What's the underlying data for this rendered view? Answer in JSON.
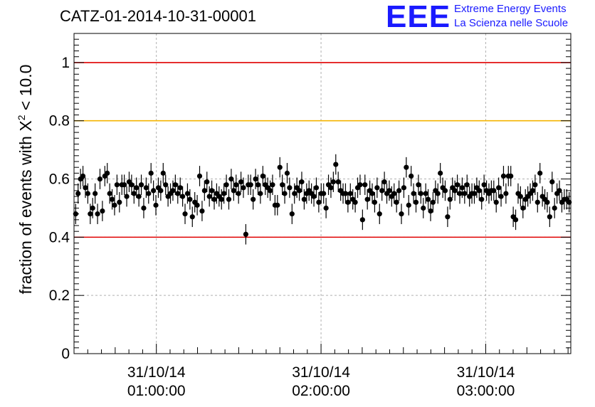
{
  "title": "CATZ-01-2014-10-31-00001",
  "logo": {
    "mark": "EEE",
    "line1": "Extreme Energy Events",
    "line2": "La Scienza nelle Scuole"
  },
  "colors": {
    "red_line": "#e00000",
    "yellow_line": "#f4b400",
    "points": "#000000",
    "logo": "#1a1aff"
  },
  "chart_data": {
    "type": "scatter",
    "title": "CATZ-01-2014-10-31-00001",
    "ylabel_prefix": "fraction of events with ",
    "ylabel_symbol": "X",
    "ylabel_sup": "2",
    "ylabel_suffix": " < 10.0",
    "xlabel": "",
    "ylim": [
      0,
      1.1
    ],
    "yticks": [
      {
        "value": 0,
        "label": "0"
      },
      {
        "value": 0.2,
        "label": "0.2"
      },
      {
        "value": 0.4,
        "label": "0.4"
      },
      {
        "value": 0.6,
        "label": "0.6"
      },
      {
        "value": 0.8,
        "label": "0.8"
      },
      {
        "value": 1.0,
        "label": "1"
      }
    ],
    "xlim_minutes": [
      30,
      211
    ],
    "xticks": [
      {
        "minutes": 60,
        "date": "31/10/14",
        "time": "01:00:00"
      },
      {
        "minutes": 120,
        "date": "31/10/14",
        "time": "02:00:00"
      },
      {
        "minutes": 180,
        "date": "31/10/14",
        "time": "03:00:00"
      }
    ],
    "grid": true,
    "reference_lines": [
      {
        "y": 1.0,
        "color": "#e00000"
      },
      {
        "y": 0.8,
        "color": "#f4b400"
      },
      {
        "y": 0.4,
        "color": "#e00000"
      }
    ],
    "error_bar": 0.035,
    "points": [
      0.48,
      0.55,
      0.6,
      0.61,
      0.57,
      0.55,
      0.48,
      0.5,
      0.55,
      0.48,
      0.6,
      0.49,
      0.61,
      0.62,
      0.55,
      0.53,
      0.51,
      0.58,
      0.52,
      0.58,
      0.58,
      0.54,
      0.59,
      0.58,
      0.55,
      0.57,
      0.54,
      0.58,
      0.5,
      0.57,
      0.55,
      0.62,
      0.56,
      0.51,
      0.57,
      0.56,
      0.62,
      0.58,
      0.54,
      0.55,
      0.56,
      0.58,
      0.55,
      0.57,
      0.54,
      0.48,
      0.55,
      0.53,
      0.47,
      0.52,
      0.51,
      0.61,
      0.49,
      0.56,
      0.59,
      0.54,
      0.56,
      0.53,
      0.55,
      0.54,
      0.53,
      0.55,
      0.58,
      0.53,
      0.6,
      0.56,
      0.58,
      0.55,
      0.59,
      0.57,
      0.41,
      0.58,
      0.58,
      0.53,
      0.6,
      0.58,
      0.55,
      0.61,
      0.58,
      0.57,
      0.56,
      0.58,
      0.51,
      0.51,
      0.64,
      0.58,
      0.55,
      0.62,
      0.57,
      0.48,
      0.55,
      0.57,
      0.56,
      0.59,
      0.53,
      0.55,
      0.56,
      0.55,
      0.54,
      0.57,
      0.52,
      0.55,
      0.55,
      0.5,
      0.58,
      0.57,
      0.59,
      0.65,
      0.59,
      0.56,
      0.55,
      0.55,
      0.52,
      0.55,
      0.53,
      0.52,
      0.57,
      0.58,
      0.46,
      0.58,
      0.53,
      0.56,
      0.55,
      0.52,
      0.57,
      0.48,
      0.56,
      0.59,
      0.55,
      0.56,
      0.54,
      0.55,
      0.52,
      0.56,
      0.48,
      0.57,
      0.64,
      0.51,
      0.61,
      0.55,
      0.52,
      0.58,
      0.55,
      0.5,
      0.55,
      0.53,
      0.49,
      0.52,
      0.56,
      0.55,
      0.62,
      0.57,
      0.56,
      0.47,
      0.53,
      0.57,
      0.56,
      0.58,
      0.55,
      0.57,
      0.55,
      0.58,
      0.54,
      0.55,
      0.55,
      0.57,
      0.56,
      0.53,
      0.58,
      0.56,
      0.55,
      0.56,
      0.56,
      0.52,
      0.57,
      0.54,
      0.61,
      0.55,
      0.61,
      0.61,
      0.47,
      0.46,
      0.55,
      0.54,
      0.5,
      0.53,
      0.54,
      0.55,
      0.56,
      0.58,
      0.52,
      0.62,
      0.54,
      0.53,
      0.52,
      0.47,
      0.59,
      0.5,
      0.55,
      0.56,
      0.52,
      0.53,
      0.53,
      0.52
    ]
  }
}
